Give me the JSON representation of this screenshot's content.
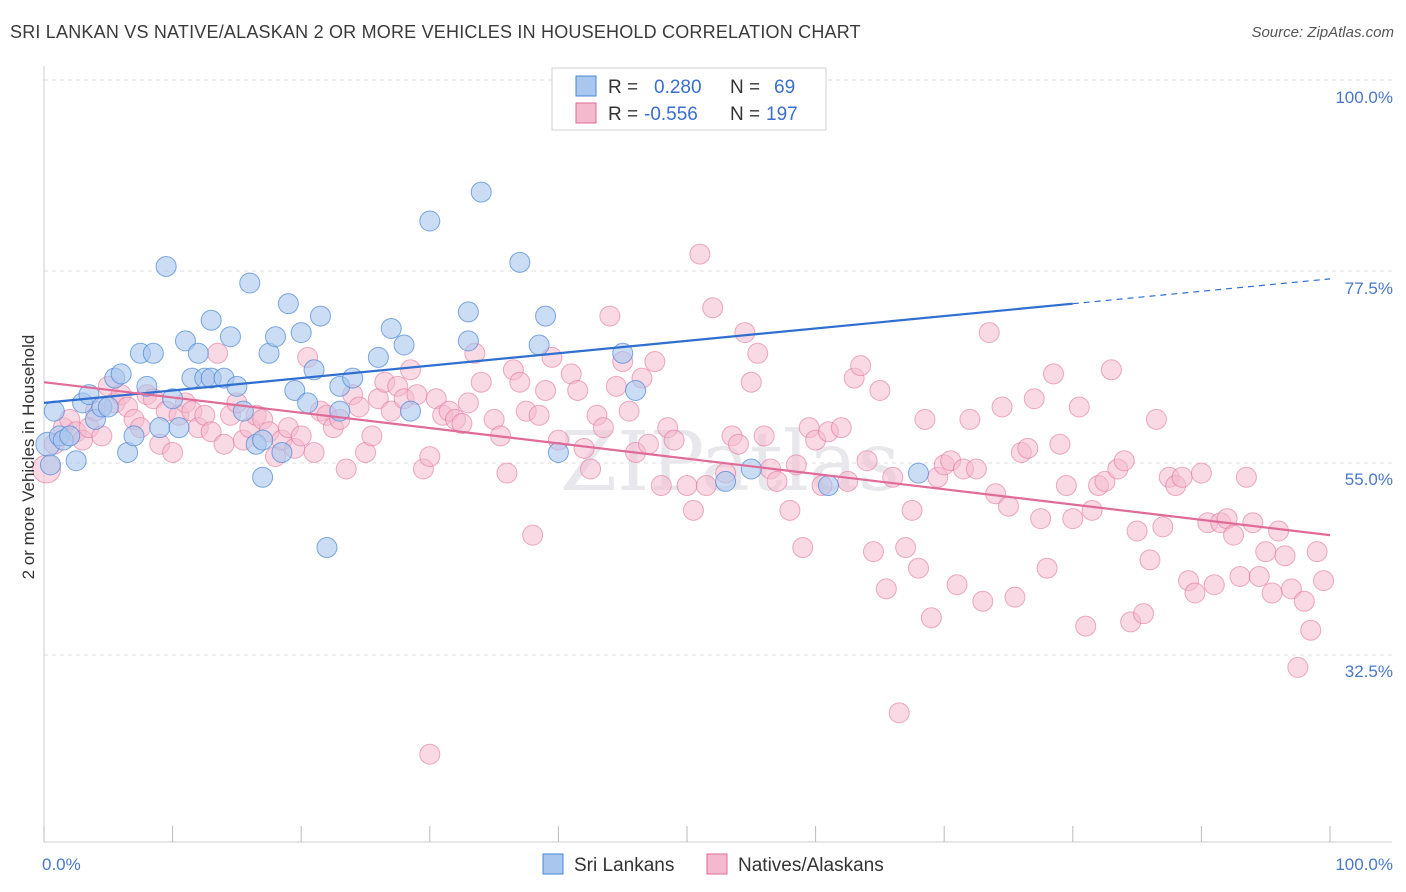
{
  "title": "SRI LANKAN VS NATIVE/ALASKAN 2 OR MORE VEHICLES IN HOUSEHOLD CORRELATION CHART",
  "source": "Source: ZipAtlas.com",
  "watermark": "ZIPatlas",
  "colors": {
    "blue": "#4a86d4",
    "blue_fill": "#a9c6ef",
    "pink": "#e06b98",
    "pink_fill": "#f4b9cd",
    "tick": "#4a78c8"
  },
  "legend": {
    "rows": [
      {
        "r_label": "R =",
        "r_value": "0.280",
        "n_label": "N =",
        "n_value": "69"
      },
      {
        "r_label": "R =",
        "r_value": "-0.556",
        "n_label": "N =",
        "n_value": "197"
      }
    ]
  },
  "chart_data": {
    "type": "scatter",
    "ylabel": "2 or more Vehicles in Household",
    "xlim": [
      0,
      100
    ],
    "ylim": [
      16,
      104
    ],
    "x_tick_labels": [
      "0.0%",
      "100.0%"
    ],
    "y_ticks": [
      {
        "value": 100,
        "label": "100.0%"
      },
      {
        "value": 77.5,
        "label": "77.5%"
      },
      {
        "value": 55,
        "label": "55.0%"
      },
      {
        "value": 32.5,
        "label": "32.5%"
      }
    ],
    "grid": "horizontal-dashed",
    "series": [
      {
        "name": "Sri Lankans",
        "color": "#4a86d4",
        "trend": {
          "x0": 0,
          "y0": 63.0,
          "x1": 80,
          "y1": 75.0,
          "dash_to_x": 100,
          "dash_to_y": 78.0
        },
        "points": [
          [
            0.3,
            58
          ],
          [
            0.5,
            55.5
          ],
          [
            0.8,
            62
          ],
          [
            1.2,
            59
          ],
          [
            1.5,
            58.5
          ],
          [
            2,
            59
          ],
          [
            2.5,
            56
          ],
          [
            3,
            63
          ],
          [
            3.5,
            64
          ],
          [
            4,
            61
          ],
          [
            4.5,
            62.5
          ],
          [
            5,
            62.5
          ],
          [
            5.5,
            66
          ],
          [
            6,
            66.5
          ],
          [
            6.5,
            57
          ],
          [
            7,
            59
          ],
          [
            7.5,
            69
          ],
          [
            8,
            65
          ],
          [
            8.5,
            69
          ],
          [
            9,
            60
          ],
          [
            9.5,
            79.5
          ],
          [
            10,
            63.5
          ],
          [
            10.5,
            60
          ],
          [
            11,
            70.5
          ],
          [
            11.5,
            66
          ],
          [
            12,
            69
          ],
          [
            12.5,
            66
          ],
          [
            13,
            66
          ],
          [
            13,
            73
          ],
          [
            14,
            66
          ],
          [
            14.5,
            71
          ],
          [
            15,
            65
          ],
          [
            15.5,
            62
          ],
          [
            16,
            77.5
          ],
          [
            16.5,
            58
          ],
          [
            17,
            58.5
          ],
          [
            17,
            54
          ],
          [
            17.5,
            69
          ],
          [
            18,
            71
          ],
          [
            18.5,
            57
          ],
          [
            19,
            75
          ],
          [
            19.5,
            64.5
          ],
          [
            20,
            71.5
          ],
          [
            20.5,
            63
          ],
          [
            21,
            67
          ],
          [
            21.5,
            73.5
          ],
          [
            22,
            45.5
          ],
          [
            23,
            65
          ],
          [
            23,
            62
          ],
          [
            24,
            66
          ],
          [
            26,
            68.5
          ],
          [
            27,
            72
          ],
          [
            28,
            70
          ],
          [
            28.5,
            62
          ],
          [
            30,
            85
          ],
          [
            33,
            74
          ],
          [
            33,
            70.5
          ],
          [
            34,
            88.5
          ],
          [
            37,
            80
          ],
          [
            38.5,
            70
          ],
          [
            39,
            73.5
          ],
          [
            40,
            57
          ],
          [
            45,
            69
          ],
          [
            46,
            64.5
          ],
          [
            53,
            53.5
          ],
          [
            55,
            55
          ],
          [
            61,
            53
          ],
          [
            68,
            54.5
          ]
        ],
        "radius": [
          12,
          10,
          10,
          10,
          10,
          10,
          10,
          10,
          10,
          10,
          10,
          10,
          10,
          10,
          10,
          10,
          10,
          10,
          10,
          10,
          10,
          10,
          10,
          10,
          10,
          10,
          10,
          10,
          10,
          10,
          10,
          10,
          10,
          10,
          10,
          10,
          10,
          10,
          10,
          10,
          10,
          10,
          10,
          10,
          10,
          10,
          10,
          10,
          10,
          10,
          10,
          10,
          10,
          10,
          10,
          10,
          10,
          10,
          10,
          10,
          10,
          10,
          10,
          10,
          10,
          10,
          10,
          10,
          10
        ]
      },
      {
        "name": "Natives/Alaskans",
        "color": "#e06b98",
        "trend": {
          "x0": 0,
          "y0": 65.5,
          "x1": 100,
          "y1": 47.0
        },
        "points": [
          [
            0.2,
            55
          ],
          [
            0.8,
            58
          ],
          [
            1.5,
            60
          ],
          [
            2,
            61
          ],
          [
            2.5,
            59.5
          ],
          [
            3,
            58.5
          ],
          [
            3.5,
            60
          ],
          [
            4,
            62
          ],
          [
            4.5,
            59
          ],
          [
            5,
            65
          ],
          [
            5.5,
            63
          ],
          [
            6,
            64
          ],
          [
            6.5,
            62.5
          ],
          [
            7,
            61
          ],
          [
            7.5,
            60
          ],
          [
            8,
            64
          ],
          [
            8.5,
            63.5
          ],
          [
            9,
            58
          ],
          [
            9.5,
            62
          ],
          [
            10,
            57
          ],
          [
            10.5,
            61.5
          ],
          [
            11,
            63
          ],
          [
            11.5,
            62
          ],
          [
            12,
            60
          ],
          [
            12.5,
            61.5
          ],
          [
            13,
            59.5
          ],
          [
            13.5,
            69
          ],
          [
            14,
            58
          ],
          [
            14.5,
            61.5
          ],
          [
            15,
            63
          ],
          [
            15.5,
            58.5
          ],
          [
            16,
            60
          ],
          [
            16.5,
            61.5
          ],
          [
            17,
            61
          ],
          [
            17.5,
            59.5
          ],
          [
            18,
            56.5
          ],
          [
            18.5,
            58.5
          ],
          [
            19,
            60
          ],
          [
            19.5,
            57.5
          ],
          [
            20,
            59
          ],
          [
            20.5,
            68.5
          ],
          [
            21,
            57
          ],
          [
            21.5,
            62
          ],
          [
            22,
            61.5
          ],
          [
            22.5,
            60
          ],
          [
            23,
            61
          ],
          [
            23.5,
            55
          ],
          [
            24,
            64
          ],
          [
            24.5,
            62.5
          ],
          [
            25,
            57
          ],
          [
            25.5,
            59
          ],
          [
            26,
            63.5
          ],
          [
            26.5,
            65.5
          ],
          [
            27,
            62
          ],
          [
            27.5,
            65
          ],
          [
            28,
            63.5
          ],
          [
            28.5,
            67
          ],
          [
            29,
            64
          ],
          [
            29.5,
            55
          ],
          [
            30,
            56.5
          ],
          [
            30.5,
            63.5
          ],
          [
            31,
            61.5
          ],
          [
            31.5,
            62
          ],
          [
            32,
            61
          ],
          [
            32.5,
            60.5
          ],
          [
            33,
            63
          ],
          [
            33.5,
            69
          ],
          [
            34,
            65.5
          ],
          [
            35,
            61
          ],
          [
            35.5,
            59
          ],
          [
            36,
            54.5
          ],
          [
            36.5,
            67
          ],
          [
            37,
            65.5
          ],
          [
            37.5,
            62
          ],
          [
            38,
            47
          ],
          [
            38.5,
            61.5
          ],
          [
            39,
            64.5
          ],
          [
            39.5,
            68.5
          ],
          [
            40,
            58.5
          ],
          [
            41,
            66.5
          ],
          [
            41.5,
            64.5
          ],
          [
            42,
            57.5
          ],
          [
            42.5,
            55
          ],
          [
            43,
            61.5
          ],
          [
            43.5,
            60
          ],
          [
            44,
            73.5
          ],
          [
            44.5,
            65
          ],
          [
            45,
            68
          ],
          [
            45.5,
            62
          ],
          [
            46,
            57
          ],
          [
            46.5,
            66
          ],
          [
            47,
            58
          ],
          [
            47.5,
            68
          ],
          [
            48,
            53
          ],
          [
            48.5,
            60
          ],
          [
            49,
            58.5
          ],
          [
            50,
            53
          ],
          [
            50.5,
            50
          ],
          [
            51,
            81
          ],
          [
            51.5,
            53
          ],
          [
            52,
            74.5
          ],
          [
            53,
            54.5
          ],
          [
            53.5,
            59
          ],
          [
            54,
            58
          ],
          [
            54.5,
            71.5
          ],
          [
            55,
            65.5
          ],
          [
            55.5,
            69
          ],
          [
            56,
            59
          ],
          [
            56.5,
            55
          ],
          [
            57,
            53.5
          ],
          [
            58,
            50
          ],
          [
            58.5,
            55.5
          ],
          [
            59,
            45.5
          ],
          [
            59.5,
            60
          ],
          [
            60,
            58.5
          ],
          [
            60.5,
            53
          ],
          [
            61,
            59.5
          ],
          [
            62,
            60
          ],
          [
            62.5,
            53.5
          ],
          [
            63,
            66
          ],
          [
            63.5,
            67.5
          ],
          [
            64,
            56
          ],
          [
            64.5,
            45
          ],
          [
            65,
            64.5
          ],
          [
            65.5,
            40.5
          ],
          [
            66,
            54
          ],
          [
            66.5,
            25.5
          ],
          [
            67,
            45.5
          ],
          [
            67.5,
            50
          ],
          [
            68,
            43
          ],
          [
            68.5,
            61
          ],
          [
            69,
            37
          ],
          [
            69.5,
            54
          ],
          [
            70,
            55.5
          ],
          [
            70.5,
            56
          ],
          [
            71,
            41
          ],
          [
            71.5,
            55
          ],
          [
            72,
            61
          ],
          [
            72.5,
            55
          ],
          [
            73,
            39
          ],
          [
            73.5,
            71.5
          ],
          [
            74,
            52
          ],
          [
            74.5,
            62.5
          ],
          [
            75,
            50.5
          ],
          [
            75.5,
            39.5
          ],
          [
            76,
            57
          ],
          [
            76.5,
            57.5
          ],
          [
            77,
            63.5
          ],
          [
            77.5,
            49
          ],
          [
            78,
            43
          ],
          [
            78.5,
            66.5
          ],
          [
            79,
            58
          ],
          [
            79.5,
            53
          ],
          [
            80,
            49
          ],
          [
            80.5,
            62.5
          ],
          [
            81,
            36
          ],
          [
            81.5,
            50
          ],
          [
            82,
            53
          ],
          [
            82.5,
            53.5
          ],
          [
            83,
            67
          ],
          [
            83.5,
            55
          ],
          [
            84,
            56
          ],
          [
            84.5,
            36.5
          ],
          [
            85,
            47.5
          ],
          [
            85.5,
            37.5
          ],
          [
            86,
            44
          ],
          [
            86.5,
            61
          ],
          [
            87,
            48
          ],
          [
            87.5,
            54
          ],
          [
            88,
            53
          ],
          [
            88.5,
            54
          ],
          [
            89,
            41.5
          ],
          [
            89.5,
            40
          ],
          [
            90,
            54.5
          ],
          [
            90.5,
            48.5
          ],
          [
            91,
            41
          ],
          [
            91.5,
            48.5
          ],
          [
            92,
            49
          ],
          [
            92.5,
            47
          ],
          [
            93,
            42
          ],
          [
            93.5,
            54
          ],
          [
            94,
            48.5
          ],
          [
            94.5,
            42
          ],
          [
            95,
            45
          ],
          [
            95.5,
            40
          ],
          [
            96,
            47.5
          ],
          [
            96.5,
            44.5
          ],
          [
            97,
            40.5
          ],
          [
            97.5,
            31
          ],
          [
            98,
            39
          ],
          [
            98.5,
            35.5
          ],
          [
            99,
            45
          ],
          [
            99.5,
            41.5
          ],
          [
            30,
            20.5
          ]
        ],
        "radius_default": 10,
        "radius_first": 14
      }
    ]
  }
}
